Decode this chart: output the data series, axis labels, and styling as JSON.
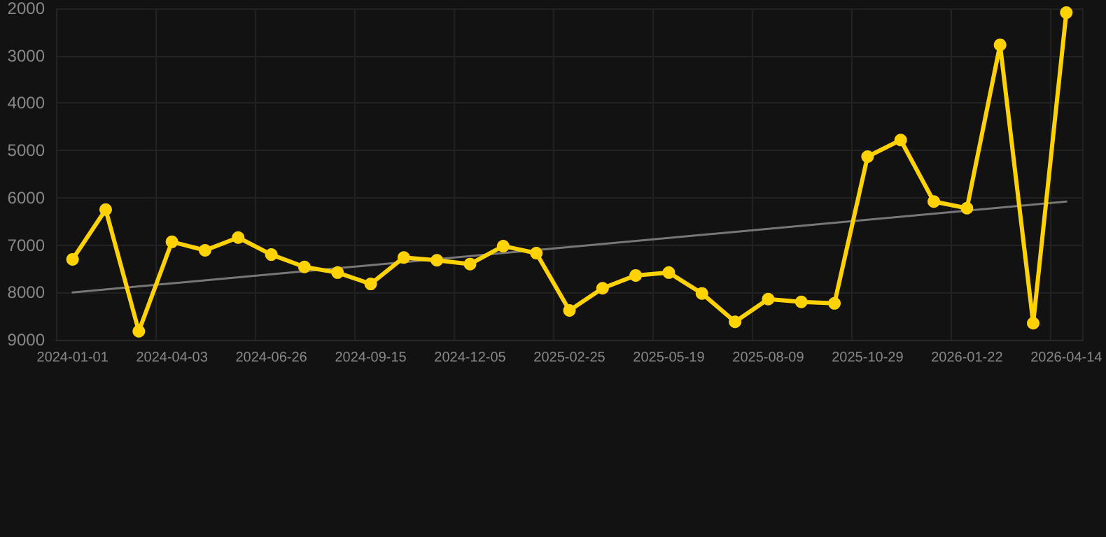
{
  "chart_data": {
    "type": "line",
    "categories": [
      "2024-01-01",
      null,
      null,
      "2024-04-03",
      null,
      null,
      "2024-06-26",
      null,
      null,
      "2024-09-15",
      null,
      null,
      "2024-12-05",
      null,
      null,
      "2025-02-25",
      null,
      null,
      "2025-05-19",
      null,
      null,
      "2025-08-09",
      null,
      null,
      "2025-10-29",
      null,
      null,
      "2026-01-22",
      null,
      null,
      "2026-04-14"
    ],
    "series": [
      {
        "color": "#ffd200",
        "values": [
          7300,
          6250,
          8820,
          6930,
          7110,
          6840,
          7200,
          7460,
          7580,
          7820,
          7260,
          7320,
          7400,
          7020,
          7170,
          8380,
          7910,
          7640,
          7580,
          8020,
          8620,
          8140,
          8200,
          8230,
          5130,
          4780,
          6080,
          6220,
          2770,
          8650,
          2090
        ]
      },
      {
        "type": "line",
        "marker": "none",
        "color": "#777777",
        "values": [
          8000,
          null,
          null,
          null,
          null,
          null,
          null,
          null,
          null,
          null,
          null,
          null,
          null,
          null,
          null,
          null,
          null,
          null,
          null,
          null,
          null,
          null,
          null,
          null,
          null,
          null,
          null,
          null,
          null,
          null,
          6080
        ]
      }
    ],
    "ylim": [
      9000,
      2000
    ],
    "yticks": [
      2000,
      3000,
      4000,
      5000,
      6000,
      7000,
      8000,
      9000
    ],
    "grid": true,
    "marker": "circle",
    "line_style": "solid"
  }
}
